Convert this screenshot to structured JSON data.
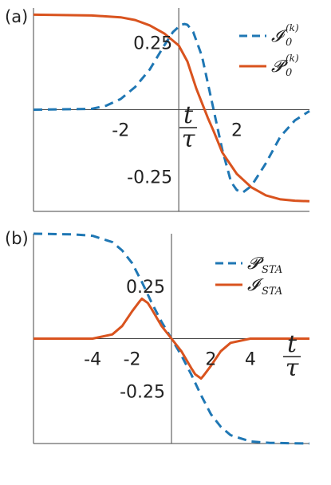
{
  "colors": {
    "blue": "#1f77b4",
    "orange": "#d9531e",
    "axis": "#444444"
  },
  "chart_data": [
    {
      "panel_label": "(a)",
      "type": "line",
      "xlim": [
        -5,
        4.5
      ],
      "ylim": [
        -0.38,
        0.38
      ],
      "xticks": [
        {
          "value": -2,
          "label": "-2"
        },
        {
          "value": 2,
          "label": "2"
        }
      ],
      "yticks": [
        {
          "value": 0.25,
          "label": "0.25"
        },
        {
          "value": -0.25,
          "label": "-0.25"
        }
      ],
      "xlabel": {
        "num": "t",
        "den": "τ"
      },
      "legend_position": "top-right",
      "series": [
        {
          "name": "I_0^(k)",
          "legend_main": "𝓘",
          "legend_sub": "0",
          "legend_sup": "(k)",
          "color": "#1f77b4",
          "dash": true,
          "points": [
            [
              -5,
              0.0
            ],
            [
              -3,
              0.003
            ],
            [
              -2.5,
              0.015
            ],
            [
              -2,
              0.04
            ],
            [
              -1.5,
              0.085
            ],
            [
              -1,
              0.15
            ],
            [
              -0.5,
              0.24
            ],
            [
              -0.2,
              0.29
            ],
            [
              0,
              0.31
            ],
            [
              0.1,
              0.318
            ],
            [
              0.2,
              0.32
            ],
            [
              0.3,
              0.317
            ],
            [
              0.5,
              0.29
            ],
            [
              0.8,
              0.2
            ],
            [
              1,
              0.1
            ],
            [
              1.2,
              0.0
            ],
            [
              1.5,
              -0.15
            ],
            [
              1.8,
              -0.27
            ],
            [
              2,
              -0.3
            ],
            [
              2.2,
              -0.31
            ],
            [
              2.5,
              -0.285
            ],
            [
              3,
              -0.2
            ],
            [
              3.5,
              -0.1
            ],
            [
              4,
              -0.04
            ],
            [
              4.5,
              -0.005
            ]
          ]
        },
        {
          "name": "P_0^(k)",
          "legend_main": "𝓟",
          "legend_sub": "0",
          "legend_sup": "(k)",
          "color": "#d9531e",
          "dash": false,
          "points": [
            [
              -5,
              0.355
            ],
            [
              -3,
              0.352
            ],
            [
              -2,
              0.345
            ],
            [
              -1.5,
              0.335
            ],
            [
              -1,
              0.315
            ],
            [
              -0.5,
              0.285
            ],
            [
              0,
              0.24
            ],
            [
              0.3,
              0.18
            ],
            [
              0.6,
              0.08
            ],
            [
              1,
              -0.03
            ],
            [
              1.2,
              -0.08
            ],
            [
              1.5,
              -0.16
            ],
            [
              2,
              -0.24
            ],
            [
              2.5,
              -0.29
            ],
            [
              3,
              -0.32
            ],
            [
              3.5,
              -0.335
            ],
            [
              4,
              -0.34
            ],
            [
              4.5,
              -0.342
            ]
          ]
        }
      ]
    },
    {
      "panel_label": "(b)",
      "type": "line",
      "xlim": [
        -7,
        7
      ],
      "ylim": [
        -0.5,
        0.5
      ],
      "xticks": [
        {
          "value": -4,
          "label": "-4"
        },
        {
          "value": -2,
          "label": "-2"
        },
        {
          "value": 2,
          "label": "2"
        },
        {
          "value": 4,
          "label": "4"
        }
      ],
      "yticks": [
        {
          "value": 0.25,
          "label": "0.25"
        },
        {
          "value": -0.25,
          "label": "-0.25"
        }
      ],
      "xlabel": {
        "num": "t",
        "den": "τ"
      },
      "legend_position": "top-right",
      "series": [
        {
          "name": "P_STA",
          "legend_main": "𝓟",
          "legend_sub": "STA",
          "legend_sup": "",
          "color": "#1f77b4",
          "dash": true,
          "points": [
            [
              -7,
              0.5
            ],
            [
              -5,
              0.497
            ],
            [
              -4,
              0.49
            ],
            [
              -3,
              0.46
            ],
            [
              -2.5,
              0.42
            ],
            [
              -2,
              0.36
            ],
            [
              -1.5,
              0.27
            ],
            [
              -1,
              0.17
            ],
            [
              -0.5,
              0.08
            ],
            [
              0,
              0.0
            ],
            [
              0.5,
              -0.08
            ],
            [
              1,
              -0.17
            ],
            [
              1.5,
              -0.27
            ],
            [
              2,
              -0.36
            ],
            [
              2.5,
              -0.42
            ],
            [
              3,
              -0.46
            ],
            [
              4,
              -0.49
            ],
            [
              5,
              -0.497
            ],
            [
              7,
              -0.5
            ]
          ]
        },
        {
          "name": "I_STA",
          "legend_main": "𝓘",
          "legend_sub": "STA",
          "legend_sup": "",
          "color": "#d9531e",
          "dash": false,
          "points": [
            [
              -7,
              0.0
            ],
            [
              -4,
              0.0
            ],
            [
              -3,
              0.02
            ],
            [
              -2.5,
              0.06
            ],
            [
              -2,
              0.13
            ],
            [
              -1.6,
              0.18
            ],
            [
              -1.5,
              0.19
            ],
            [
              -1.2,
              0.17
            ],
            [
              -1,
              0.14
            ],
            [
              -0.5,
              0.06
            ],
            [
              0,
              0.0
            ],
            [
              0.5,
              -0.06
            ],
            [
              1,
              -0.14
            ],
            [
              1.2,
              -0.17
            ],
            [
              1.5,
              -0.19
            ],
            [
              1.6,
              -0.18
            ],
            [
              2,
              -0.13
            ],
            [
              2.5,
              -0.06
            ],
            [
              3,
              -0.02
            ],
            [
              4,
              0.0
            ],
            [
              7,
              0.0
            ]
          ]
        }
      ]
    }
  ]
}
